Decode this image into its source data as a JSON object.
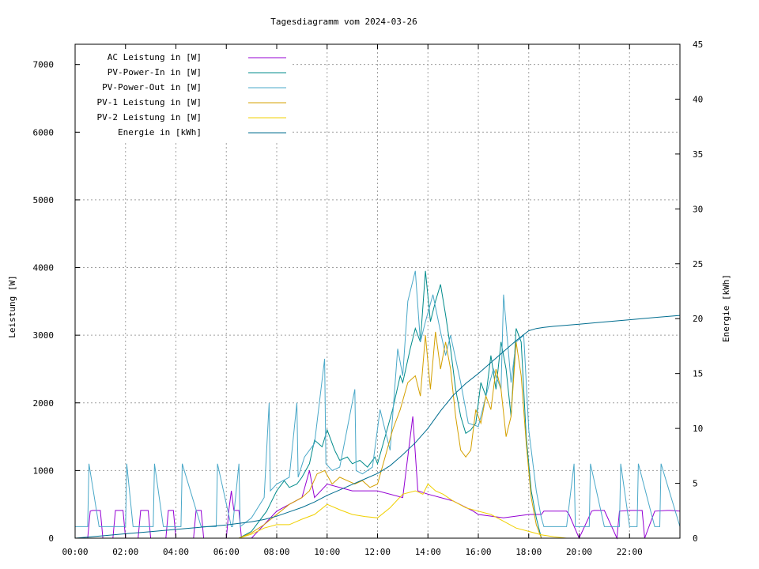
{
  "chart_data": {
    "type": "line",
    "title": "Tagesdiagramm vom 2024-03-26",
    "ylabel": "Leistung [W]",
    "y2label": "Energie [kWh]",
    "xlabel": "",
    "xlim": [
      0,
      24
    ],
    "ylim": [
      0,
      7300
    ],
    "y2lim": [
      0,
      45
    ],
    "x_ticks": [
      "00:00",
      "02:00",
      "04:00",
      "06:00",
      "08:00",
      "10:00",
      "12:00",
      "14:00",
      "16:00",
      "18:00",
      "20:00",
      "22:00"
    ],
    "y_ticks": [
      "0",
      "1000",
      "2000",
      "3000",
      "4000",
      "5000",
      "6000",
      "7000"
    ],
    "y2_ticks": [
      "0",
      "5",
      "10",
      "15",
      "20",
      "25",
      "30",
      "35",
      "40",
      "45"
    ],
    "grid": true,
    "legend_position": "top-left",
    "series": [
      {
        "name": "AC Leistung in [W]",
        "color": "#9400d3",
        "axis": "left",
        "x": [
          0,
          0.5,
          0.6,
          0.7,
          1.0,
          1.1,
          1.5,
          1.6,
          1.9,
          2.0,
          2.5,
          2.6,
          2.9,
          3.0,
          3.6,
          3.7,
          3.9,
          4.0,
          4.7,
          4.8,
          5.0,
          5.1,
          6.0,
          6.1,
          6.2,
          6.3,
          6.5,
          6.6,
          6.7,
          7.0,
          8.0,
          9.0,
          9.3,
          9.5,
          10.0,
          11.0,
          12.0,
          13.0,
          13.4,
          13.6,
          14.0,
          15.0,
          15.8,
          16.0,
          17.0,
          18.0,
          18.5,
          18.6,
          19.0,
          19.5,
          19.6,
          20.0,
          20.5,
          20.6,
          21.0,
          21.5,
          21.6,
          22.0,
          22.5,
          22.6,
          23.0,
          23.5,
          23.6,
          24.0
        ],
        "y": [
          0,
          0,
          400,
          410,
          410,
          0,
          0,
          410,
          410,
          0,
          0,
          410,
          410,
          0,
          0,
          410,
          410,
          0,
          0,
          410,
          410,
          0,
          0,
          410,
          700,
          410,
          410,
          0,
          0,
          0,
          400,
          600,
          1000,
          600,
          800,
          700,
          700,
          600,
          1800,
          700,
          650,
          550,
          400,
          350,
          300,
          350,
          350,
          400,
          400,
          400,
          350,
          0,
          400,
          410,
          410,
          0,
          400,
          410,
          410,
          0,
          400,
          410,
          410,
          400
        ]
      },
      {
        "name": "PV-Power-In in [W]",
        "color": "#008b8b",
        "axis": "left",
        "x": [
          6.5,
          7.0,
          7.3,
          7.6,
          8.0,
          8.3,
          8.5,
          8.8,
          9.0,
          9.3,
          9.5,
          9.8,
          10.0,
          10.3,
          10.5,
          10.8,
          11.0,
          11.3,
          11.6,
          11.9,
          12.0,
          12.3,
          12.6,
          12.9,
          13.0,
          13.3,
          13.5,
          13.7,
          13.9,
          14.1,
          14.3,
          14.5,
          14.7,
          14.9,
          15.1,
          15.3,
          15.5,
          15.7,
          15.9,
          16.1,
          16.3,
          16.5,
          16.7,
          16.9,
          17.1,
          17.3,
          17.5,
          17.7,
          17.9,
          18.1,
          18.3,
          18.5
        ],
        "y": [
          0,
          100,
          250,
          400,
          700,
          850,
          750,
          800,
          900,
          1100,
          1450,
          1350,
          1600,
          1300,
          1150,
          1200,
          1100,
          1150,
          1050,
          1200,
          1100,
          1500,
          1900,
          2400,
          2300,
          2800,
          3100,
          2900,
          3950,
          3200,
          3500,
          3750,
          3300,
          2800,
          2200,
          1800,
          1550,
          1600,
          1700,
          2300,
          2100,
          2700,
          2200,
          2900,
          2500,
          1800,
          3100,
          2900,
          1500,
          700,
          300,
          0
        ]
      },
      {
        "name": "PV-Power-Out in [W]",
        "color": "#4aa8c8",
        "axis": "left",
        "x": [
          0,
          0.5,
          0.55,
          0.95,
          1.0,
          1.9,
          2.0,
          2.05,
          2.3,
          2.35,
          3.1,
          3.15,
          3.5,
          3.55,
          4.2,
          4.25,
          5.0,
          5.05,
          5.6,
          5.65,
          6.2,
          6.25,
          6.5,
          6.55,
          7.0,
          7.5,
          7.7,
          7.75,
          8.0,
          8.5,
          8.8,
          8.85,
          9.1,
          9.5,
          9.9,
          9.95,
          10.2,
          10.5,
          11.1,
          11.15,
          11.4,
          11.8,
          12.1,
          12.5,
          12.8,
          13.0,
          13.2,
          13.5,
          13.7,
          13.9,
          14.2,
          14.5,
          14.7,
          14.9,
          15.3,
          15.6,
          16.0,
          16.3,
          16.6,
          16.9,
          17.0,
          17.3,
          17.5,
          17.8,
          18.0,
          18.3,
          18.5,
          18.6,
          19.0,
          19.5,
          19.8,
          19.85,
          20.0,
          20.4,
          20.45,
          21.0,
          21.6,
          21.65,
          22.0,
          22.3,
          22.35,
          23.0,
          23.2,
          23.25,
          24.0
        ],
        "y": [
          170,
          170,
          1100,
          170,
          170,
          170,
          170,
          1100,
          170,
          170,
          170,
          1100,
          170,
          170,
          170,
          1100,
          170,
          170,
          170,
          1100,
          170,
          170,
          1100,
          170,
          300,
          600,
          2000,
          700,
          800,
          900,
          2000,
          900,
          1200,
          1400,
          2650,
          1100,
          1000,
          1050,
          2200,
          1000,
          950,
          1050,
          1900,
          1300,
          2800,
          2400,
          3500,
          3950,
          2900,
          3200,
          3600,
          3050,
          2700,
          3000,
          2300,
          1700,
          1650,
          2100,
          2500,
          2200,
          3600,
          2300,
          2900,
          3000,
          1600,
          700,
          300,
          170,
          170,
          170,
          1100,
          170,
          170,
          170,
          1100,
          170,
          170,
          1100,
          170,
          170,
          1100,
          170,
          170,
          1100,
          170
        ]
      },
      {
        "name": "PV-1 Leistung in [W]",
        "color": "#d4a000",
        "axis": "left",
        "x": [
          6.5,
          7.0,
          7.5,
          8.0,
          8.5,
          9.0,
          9.3,
          9.6,
          9.9,
          10.2,
          10.5,
          10.8,
          11.1,
          11.4,
          11.7,
          12.0,
          12.3,
          12.6,
          12.9,
          13.2,
          13.5,
          13.7,
          13.9,
          14.1,
          14.3,
          14.5,
          14.7,
          14.9,
          15.1,
          15.3,
          15.5,
          15.7,
          15.9,
          16.1,
          16.3,
          16.5,
          16.7,
          16.9,
          17.1,
          17.3,
          17.5,
          17.7,
          17.9,
          18.1,
          18.3,
          18.5
        ],
        "y": [
          0,
          80,
          200,
          350,
          500,
          600,
          700,
          950,
          1000,
          800,
          900,
          850,
          800,
          850,
          750,
          800,
          1200,
          1600,
          1900,
          2300,
          2400,
          2100,
          3000,
          2200,
          3050,
          2500,
          2900,
          2500,
          1800,
          1300,
          1200,
          1300,
          1900,
          1700,
          2100,
          1900,
          2500,
          2200,
          1500,
          1800,
          2900,
          2400,
          1400,
          600,
          200,
          0
        ]
      },
      {
        "name": "PV-2 Leistung in [W]",
        "color": "#f0d000",
        "axis": "left",
        "x": [
          6.5,
          7.0,
          7.5,
          8.0,
          8.5,
          9.0,
          9.5,
          10.0,
          10.5,
          11.0,
          11.5,
          12.0,
          12.5,
          13.0,
          13.5,
          13.8,
          14.0,
          14.3,
          14.6,
          15.0,
          15.5,
          16.0,
          16.5,
          17.0,
          17.5,
          18.0,
          18.5,
          19.0,
          19.5
        ],
        "y": [
          0,
          60,
          150,
          200,
          200,
          280,
          350,
          500,
          420,
          350,
          320,
          300,
          450,
          650,
          700,
          650,
          800,
          700,
          650,
          550,
          450,
          400,
          350,
          250,
          150,
          100,
          50,
          20,
          0
        ]
      },
      {
        "name": "Energie in [kWh]",
        "color": "#006d8f",
        "axis": "right",
        "x": [
          0,
          1,
          2,
          3,
          4,
          5,
          6,
          6.5,
          7,
          7.5,
          8,
          8.5,
          9,
          9.5,
          10,
          10.5,
          11,
          11.5,
          12,
          12.5,
          13,
          13.5,
          14,
          14.5,
          15,
          15.5,
          16,
          16.5,
          17,
          17.5,
          18,
          18.3,
          18.6,
          19,
          20,
          21,
          22,
          23,
          24
        ],
        "y": [
          0,
          0.2,
          0.4,
          0.6,
          0.8,
          1.0,
          1.2,
          1.35,
          1.5,
          1.7,
          2.0,
          2.4,
          2.8,
          3.3,
          3.9,
          4.4,
          4.9,
          5.4,
          5.9,
          6.6,
          7.6,
          8.7,
          10.0,
          11.6,
          13.0,
          14.1,
          15.0,
          16.0,
          17.0,
          18.0,
          18.9,
          19.1,
          19.2,
          19.3,
          19.5,
          19.7,
          19.9,
          20.1,
          20.3
        ]
      }
    ]
  }
}
